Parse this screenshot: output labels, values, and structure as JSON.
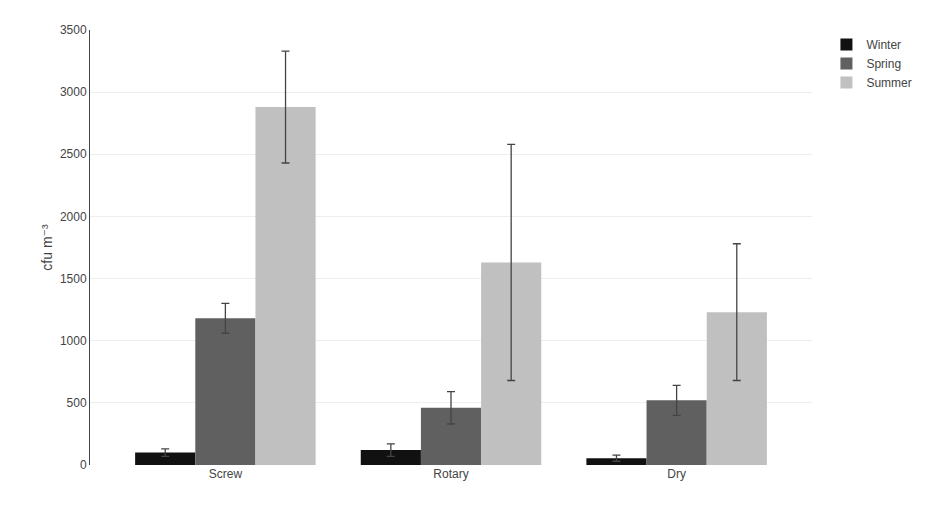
{
  "chart_data": {
    "type": "bar",
    "categories": [
      "Screw",
      "Rotary",
      "Dry"
    ],
    "series": [
      {
        "name": "Winter",
        "color": "#111111",
        "values": [
          100,
          120,
          55
        ],
        "errors": [
          30,
          50,
          25
        ]
      },
      {
        "name": "Spring",
        "color": "#606060",
        "values": [
          1180,
          460,
          520
        ],
        "errors": [
          120,
          130,
          120
        ]
      },
      {
        "name": "Summer",
        "color": "#c0c0c0",
        "values": [
          2880,
          1630,
          1230
        ],
        "errors": [
          450,
          950,
          550
        ]
      }
    ],
    "ylabel": "cfu m⁻³",
    "ylim": [
      0,
      3500
    ],
    "yticks": [
      0,
      500,
      1000,
      1500,
      2000,
      2500,
      3000,
      3500
    ],
    "grid": true,
    "legend": "upper right"
  }
}
